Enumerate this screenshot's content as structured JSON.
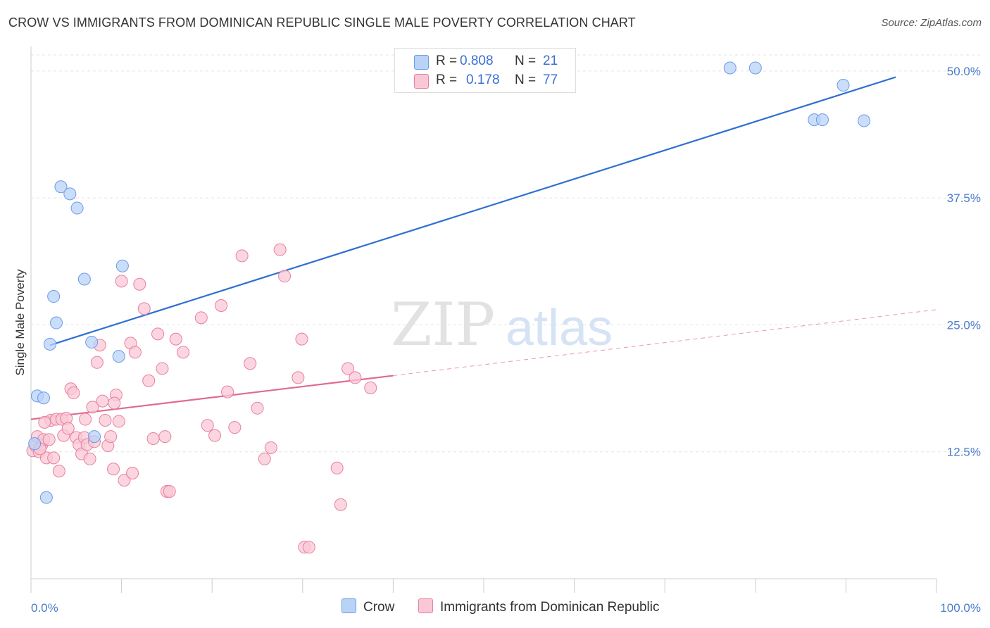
{
  "title": "CROW VS IMMIGRANTS FROM DOMINICAN REPUBLIC SINGLE MALE POVERTY CORRELATION CHART",
  "source": "Source: ZipAtlas.com",
  "watermark": {
    "zip": "ZIP",
    "atlas": "atlas"
  },
  "legend": {
    "crow": {
      "r_label": "R =",
      "r_value": "0.808",
      "n_label": "N =",
      "n_value": "21",
      "color": "#6a9be8",
      "fill": "#b9d3f7"
    },
    "dominican": {
      "r_label": "R =",
      "r_value": "0.178",
      "n_label": "N =",
      "n_value": "77",
      "color": "#e77fa0",
      "fill": "#f9c8d6"
    }
  },
  "bottom_legend": {
    "crow": "Crow",
    "dominican": "Immigrants from Dominican Republic"
  },
  "chart_data": {
    "type": "scatter",
    "xlabel": "",
    "ylabel": "Single Male Poverty",
    "xlim": [
      0,
      100
    ],
    "ylim": [
      0,
      52
    ],
    "x_tick_labels": [
      "0.0%",
      "100.0%"
    ],
    "y_ticks": [
      12.5,
      25.0,
      37.5,
      50.0
    ],
    "y_tick_labels": [
      "12.5%",
      "25.0%",
      "37.5%",
      "50.0%"
    ],
    "series": [
      {
        "name": "Crow",
        "color": "#6a9be8",
        "fill": "#b9d3f7",
        "trend_color": "#2f6fd1",
        "trend": {
          "x": [
            2.1,
            95.5
          ],
          "y": [
            23.0,
            49.4
          ]
        },
        "trend_dashed": null,
        "points": [
          [
            0.4,
            13.3
          ],
          [
            0.7,
            18.0
          ],
          [
            1.4,
            17.8
          ],
          [
            1.7,
            8.0
          ],
          [
            2.1,
            23.1
          ],
          [
            2.5,
            27.8
          ],
          [
            2.8,
            25.2
          ],
          [
            3.3,
            38.6
          ],
          [
            4.3,
            37.9
          ],
          [
            5.1,
            36.5
          ],
          [
            5.9,
            29.5
          ],
          [
            6.7,
            23.3
          ],
          [
            7.0,
            14.0
          ],
          [
            9.7,
            21.9
          ],
          [
            10.1,
            30.8
          ],
          [
            77.2,
            50.3
          ],
          [
            80.0,
            50.3
          ],
          [
            86.5,
            45.2
          ],
          [
            87.4,
            45.2
          ],
          [
            89.7,
            48.6
          ],
          [
            92.0,
            45.1
          ]
        ]
      },
      {
        "name": "Immigrants from Dominican Republic",
        "color": "#e77fa0",
        "fill": "#f9c8d6",
        "trend_color": "#e06a93",
        "trend": {
          "x": [
            0.0,
            40.0
          ],
          "y": [
            15.7,
            20.0
          ]
        },
        "trend_dashed": {
          "x": [
            40.0,
            100.0
          ],
          "y": [
            20.0,
            26.5
          ]
        },
        "points": [
          [
            0.2,
            12.6
          ],
          [
            0.5,
            13.1
          ],
          [
            0.7,
            14.0
          ],
          [
            0.9,
            12.5
          ],
          [
            1.2,
            13.2
          ],
          [
            1.4,
            13.7
          ],
          [
            1.7,
            11.9
          ],
          [
            2.0,
            13.7
          ],
          [
            2.2,
            15.6
          ],
          [
            2.5,
            11.9
          ],
          [
            2.8,
            15.7
          ],
          [
            3.1,
            10.6
          ],
          [
            3.4,
            15.7
          ],
          [
            3.6,
            14.1
          ],
          [
            3.9,
            15.8
          ],
          [
            4.1,
            14.8
          ],
          [
            4.4,
            18.7
          ],
          [
            4.7,
            18.3
          ],
          [
            5.0,
            13.9
          ],
          [
            5.3,
            13.2
          ],
          [
            5.6,
            12.3
          ],
          [
            5.9,
            13.9
          ],
          [
            6.2,
            13.2
          ],
          [
            6.5,
            11.8
          ],
          [
            6.8,
            16.9
          ],
          [
            7.0,
            13.5
          ],
          [
            7.3,
            21.3
          ],
          [
            7.6,
            23.0
          ],
          [
            7.9,
            17.5
          ],
          [
            8.2,
            15.6
          ],
          [
            8.5,
            13.1
          ],
          [
            8.8,
            14.0
          ],
          [
            9.1,
            10.8
          ],
          [
            9.4,
            18.1
          ],
          [
            9.7,
            15.5
          ],
          [
            10.0,
            29.3
          ],
          [
            10.3,
            9.7
          ],
          [
            11.0,
            23.2
          ],
          [
            11.5,
            22.3
          ],
          [
            12.0,
            29.0
          ],
          [
            12.5,
            26.6
          ],
          [
            13.0,
            19.5
          ],
          [
            13.5,
            13.8
          ],
          [
            14.0,
            24.1
          ],
          [
            14.5,
            20.7
          ],
          [
            15.0,
            8.6
          ],
          [
            15.3,
            8.6
          ],
          [
            16.0,
            23.6
          ],
          [
            16.8,
            22.3
          ],
          [
            18.8,
            25.7
          ],
          [
            19.5,
            15.1
          ],
          [
            20.3,
            14.1
          ],
          [
            21.0,
            26.9
          ],
          [
            21.7,
            18.4
          ],
          [
            22.5,
            14.9
          ],
          [
            23.3,
            31.8
          ],
          [
            24.2,
            21.2
          ],
          [
            25.0,
            16.8
          ],
          [
            25.8,
            11.8
          ],
          [
            26.5,
            12.9
          ],
          [
            27.5,
            32.4
          ],
          [
            28.0,
            29.8
          ],
          [
            29.5,
            19.8
          ],
          [
            29.9,
            23.6
          ],
          [
            30.2,
            3.1
          ],
          [
            30.7,
            3.1
          ],
          [
            33.8,
            10.9
          ],
          [
            34.2,
            7.3
          ],
          [
            35.0,
            20.7
          ],
          [
            35.8,
            19.8
          ],
          [
            37.5,
            18.8
          ],
          [
            9.2,
            17.3
          ],
          [
            1.0,
            12.8
          ],
          [
            1.5,
            15.4
          ],
          [
            6.0,
            15.7
          ],
          [
            11.2,
            10.4
          ],
          [
            14.8,
            14.0
          ]
        ]
      }
    ]
  }
}
